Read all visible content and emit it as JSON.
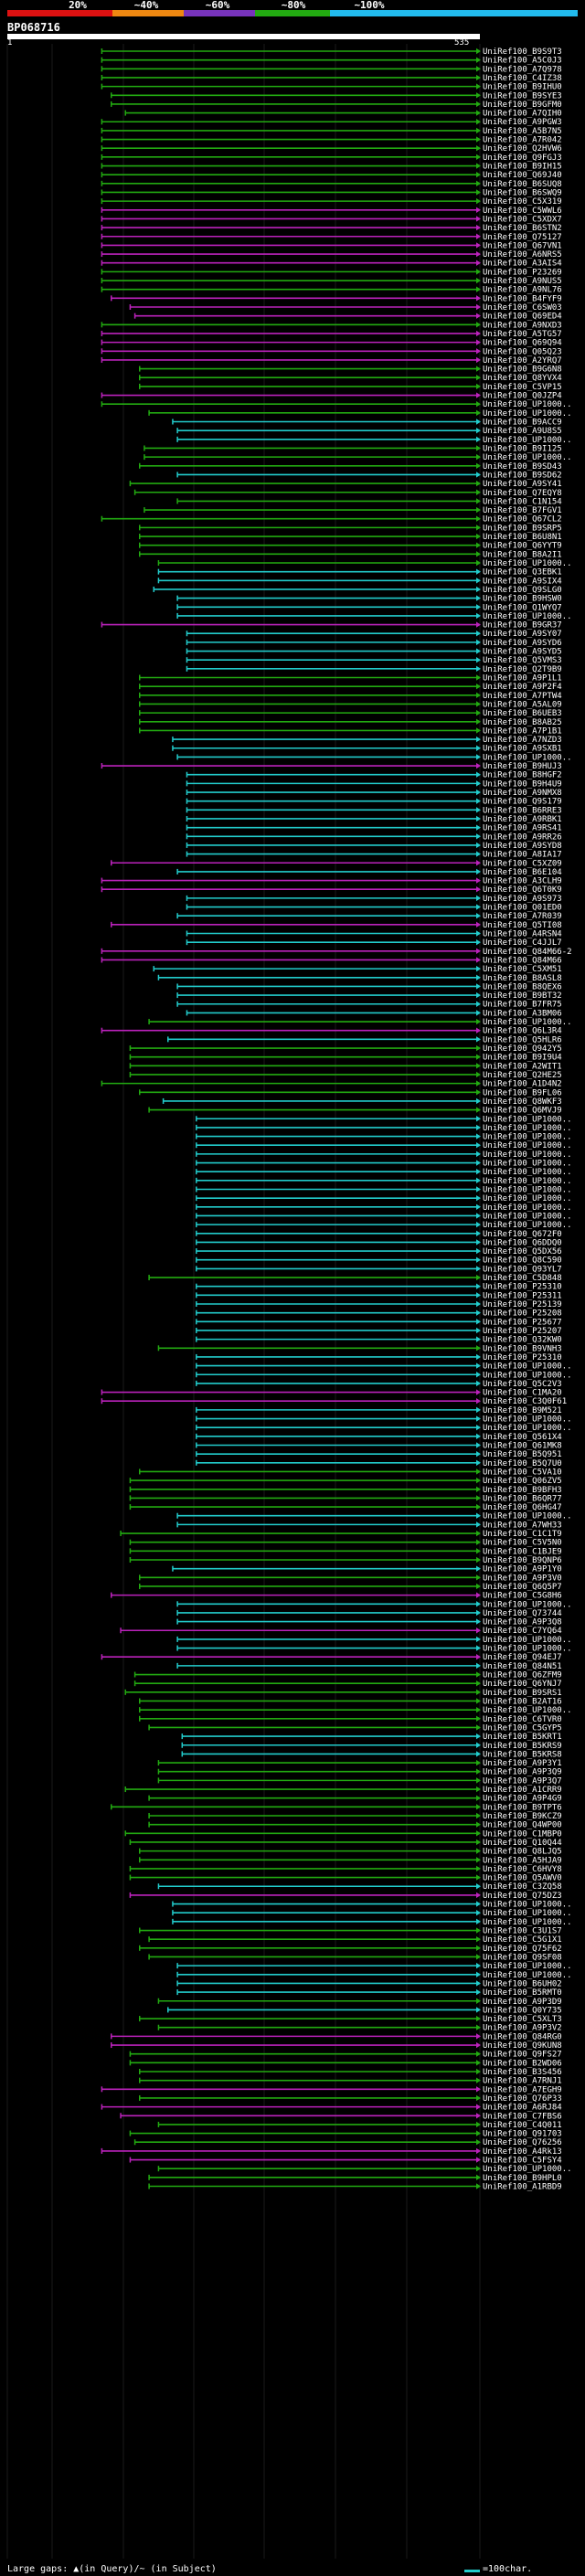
{
  "query": {
    "id": "BP068716",
    "range_start": "1",
    "range_end": "535"
  },
  "scale": {
    "labels": [
      "20%",
      "~40%",
      "~60%",
      "~80%",
      "~100%"
    ],
    "colors": [
      "#dd1111",
      "#ee8811",
      "#7733bb",
      "#22aa11",
      "#22bbee"
    ]
  },
  "hit_colors": {
    "cyan": "#22cccc",
    "green": "#22aa11",
    "magenta": "#bb22bb"
  },
  "hits": [
    [
      "UniRef100_B9S9T3",
      "g",
      0.2
    ],
    [
      "UniRef100_A5C0J3",
      "g",
      0.2
    ],
    [
      "UniRef100_A7Q978",
      "g",
      0.2
    ],
    [
      "UniRef100_C4IZ38",
      "g",
      0.2
    ],
    [
      "UniRef100_B9IHU0",
      "g",
      0.2
    ],
    [
      "UniRef100_B9SYE3",
      "g",
      0.22
    ],
    [
      "UniRef100_B9GFM0",
      "g",
      0.22
    ],
    [
      "UniRef100_A7QIH0",
      "g",
      0.25
    ],
    [
      "UniRef100_A9PGW3",
      "g",
      0.2
    ],
    [
      "UniRef100_A5B7N5",
      "g",
      0.2
    ],
    [
      "UniRef100_A7R042",
      "g",
      0.2
    ],
    [
      "UniRef100_Q2HVW6",
      "g",
      0.2
    ],
    [
      "UniRef100_Q9FGJ3",
      "g",
      0.2
    ],
    [
      "UniRef100_B9IH15",
      "g",
      0.2
    ],
    [
      "UniRef100_Q69J40",
      "g",
      0.2
    ],
    [
      "UniRef100_B6SUQ8",
      "g",
      0.2
    ],
    [
      "UniRef100_B6SWQ9",
      "g",
      0.2
    ],
    [
      "UniRef100_C5X319",
      "g",
      0.2
    ],
    [
      "UniRef100_C5WWL6",
      "m",
      0.2
    ],
    [
      "UniRef100_C5XDX7",
      "m",
      0.2
    ],
    [
      "UniRef100_B6STN2",
      "m",
      0.2
    ],
    [
      "UniRef100_Q75127",
      "m",
      0.2
    ],
    [
      "UniRef100_Q67VN1",
      "m",
      0.2
    ],
    [
      "UniRef100_A6NRS5",
      "m",
      0.2
    ],
    [
      "UniRef100_A3AIS4",
      "m",
      0.2
    ],
    [
      "UniRef100_P23269",
      "g",
      0.2
    ],
    [
      "UniRef100_A9NUS5",
      "g",
      0.2
    ],
    [
      "UniRef100_A9NL76",
      "g",
      0.2
    ],
    [
      "UniRef100_B4FYF9",
      "m",
      0.22
    ],
    [
      "UniRef100_C6SW03",
      "m",
      0.26
    ],
    [
      "UniRef100_Q69ED4",
      "m",
      0.27
    ],
    [
      "UniRef100_A9NXD3",
      "g",
      0.2
    ],
    [
      "UniRef100_A5TG57",
      "m",
      0.2
    ],
    [
      "UniRef100_Q69Q94",
      "m",
      0.2
    ],
    [
      "UniRef100_Q05Q23",
      "m",
      0.2
    ],
    [
      "UniRef100_A2YRQ7",
      "m",
      0.2
    ],
    [
      "UniRef100_B9G6N8",
      "g",
      0.28
    ],
    [
      "UniRef100_Q8YVX4",
      "g",
      0.28
    ],
    [
      "UniRef100_C5VP15",
      "g",
      0.28
    ],
    [
      "UniRef100_Q0JZP4",
      "m",
      0.2
    ],
    [
      "UniRef100_UP1000..",
      "g",
      0.2
    ],
    [
      "UniRef100_UP1000..",
      "g",
      0.3
    ],
    [
      "UniRef100_B9ACC9",
      "c",
      0.35
    ],
    [
      "UniRef100_A9U8S5",
      "c",
      0.36
    ],
    [
      "UniRef100_UP1000..",
      "c",
      0.36
    ],
    [
      "UniRef100_B9I125",
      "g",
      0.29
    ],
    [
      "UniRef100_UP1000..",
      "g",
      0.29
    ],
    [
      "UniRef100_B9SD43",
      "g",
      0.28
    ],
    [
      "UniRef100_B9SD62",
      "c",
      0.36
    ],
    [
      "UniRef100_A9SY41",
      "g",
      0.26
    ],
    [
      "UniRef100_Q7EQY8",
      "g",
      0.27
    ],
    [
      "UniRef100_C1N154",
      "g",
      0.36
    ],
    [
      "UniRef100_B7FGV1",
      "g",
      0.29
    ],
    [
      "UniRef100_Q67CL2",
      "g",
      0.2
    ],
    [
      "UniRef100_B9SRP5",
      "g",
      0.28
    ],
    [
      "UniRef100_B6U8N1",
      "g",
      0.28
    ],
    [
      "UniRef100_Q6YYT9",
      "g",
      0.28
    ],
    [
      "UniRef100_B8A2I1",
      "g",
      0.28
    ],
    [
      "UniRef100_UP1000..",
      "g",
      0.32
    ],
    [
      "UniRef100_Q3EBK1",
      "c",
      0.32
    ],
    [
      "UniRef100_A9SIX4",
      "c",
      0.32
    ],
    [
      "UniRef100_Q9SLG0",
      "c",
      0.31
    ],
    [
      "UniRef100_B9HSW0",
      "c",
      0.36
    ],
    [
      "UniRef100_Q1WYQ7",
      "c",
      0.36
    ],
    [
      "UniRef100_UP1000..",
      "c",
      0.36
    ],
    [
      "UniRef100_B9GR37",
      "m",
      0.2
    ],
    [
      "UniRef100_A9SY07",
      "c",
      0.38
    ],
    [
      "UniRef100_A9SYD6",
      "c",
      0.38
    ],
    [
      "UniRef100_A9SYD5",
      "c",
      0.38
    ],
    [
      "UniRef100_Q5VMS3",
      "c",
      0.38
    ],
    [
      "UniRef100_Q2T9B9",
      "c",
      0.38
    ],
    [
      "UniRef100_A9P1L1",
      "g",
      0.28
    ],
    [
      "UniRef100_A9P2F4",
      "g",
      0.28
    ],
    [
      "UniRef100_A7PTW4",
      "g",
      0.28
    ],
    [
      "UniRef100_A5AL09",
      "g",
      0.28
    ],
    [
      "UniRef100_B6UEB3",
      "g",
      0.28
    ],
    [
      "UniRef100_B8AB25",
      "g",
      0.28
    ],
    [
      "UniRef100_A7P1B1",
      "g",
      0.28
    ],
    [
      "UniRef100_A7NZD3",
      "c",
      0.35
    ],
    [
      "UniRef100_A9SXB1",
      "c",
      0.35
    ],
    [
      "UniRef100_UP1000..",
      "c",
      0.36
    ],
    [
      "UniRef100_B9HUJ3",
      "m",
      0.2
    ],
    [
      "UniRef100_B8HGF2",
      "c",
      0.38
    ],
    [
      "UniRef100_B9H4U9",
      "c",
      0.38
    ],
    [
      "UniRef100_A9NMX8",
      "c",
      0.38
    ],
    [
      "UniRef100_Q9S179",
      "c",
      0.38
    ],
    [
      "UniRef100_B6RRE3",
      "c",
      0.38
    ],
    [
      "UniRef100_A9RBK1",
      "c",
      0.38
    ],
    [
      "UniRef100_A9RS41",
      "c",
      0.38
    ],
    [
      "UniRef100_A9RR26",
      "c",
      0.38
    ],
    [
      "UniRef100_A9SYD8",
      "c",
      0.38
    ],
    [
      "UniRef100_A8IA17",
      "c",
      0.38
    ],
    [
      "UniRef100_C5XZ09",
      "m",
      0.22
    ],
    [
      "UniRef100_B6E104",
      "c",
      0.36
    ],
    [
      "UniRef100_A3CLH9",
      "m",
      0.2
    ],
    [
      "UniRef100_Q6T0K9",
      "m",
      0.2
    ],
    [
      "UniRef100_A9S973",
      "c",
      0.38
    ],
    [
      "UniRef100_Q01ED0",
      "c",
      0.38
    ],
    [
      "UniRef100_A7R039",
      "c",
      0.36
    ],
    [
      "UniRef100_Q5TI08",
      "m",
      0.22
    ],
    [
      "UniRef100_A4RSN4",
      "c",
      0.38
    ],
    [
      "UniRef100_C4JJL7",
      "c",
      0.38
    ],
    [
      "UniRef100_Q84M66-2",
      "m",
      0.2
    ],
    [
      "UniRef100_Q84M66",
      "m",
      0.2
    ],
    [
      "UniRef100_C5XM51",
      "c",
      0.31
    ],
    [
      "UniRef100_B8ASL8",
      "c",
      0.32
    ],
    [
      "UniRef100_B8QEX6",
      "c",
      0.36
    ],
    [
      "UniRef100_B9BT32",
      "c",
      0.36
    ],
    [
      "UniRef100_B7FR75",
      "c",
      0.36
    ],
    [
      "UniRef100_A3BM06",
      "c",
      0.38
    ],
    [
      "UniRef100_UP1000..",
      "g",
      0.3
    ],
    [
      "UniRef100_Q6L3R4",
      "m",
      0.2
    ],
    [
      "UniRef100_Q5HLR6",
      "c",
      0.34
    ],
    [
      "UniRef100_Q942Y5",
      "g",
      0.26
    ],
    [
      "UniRef100_B9I9U4",
      "g",
      0.26
    ],
    [
      "UniRef100_A2WIT1",
      "g",
      0.26
    ],
    [
      "UniRef100_Q2HE25",
      "g",
      0.26
    ],
    [
      "UniRef100_A1D4N2",
      "g",
      0.2
    ],
    [
      "UniRef100_B9FL06",
      "g",
      0.28
    ],
    [
      "UniRef100_Q8WKF3",
      "c",
      0.33
    ],
    [
      "UniRef100_Q6MVJ9",
      "g",
      0.3
    ],
    [
      "UniRef100_UP1000..",
      "c",
      0.4
    ],
    [
      "UniRef100_UP1000..",
      "c",
      0.4
    ],
    [
      "UniRef100_UP1000..",
      "c",
      0.4
    ],
    [
      "UniRef100_UP1000..",
      "c",
      0.4
    ],
    [
      "UniRef100_UP1000..",
      "c",
      0.4
    ],
    [
      "UniRef100_UP1000..",
      "c",
      0.4
    ],
    [
      "UniRef100_UP1000..",
      "c",
      0.4
    ],
    [
      "UniRef100_UP1000..",
      "c",
      0.4
    ],
    [
      "UniRef100_UP1000..",
      "c",
      0.4
    ],
    [
      "UniRef100_UP1000..",
      "c",
      0.4
    ],
    [
      "UniRef100_UP1000..",
      "c",
      0.4
    ],
    [
      "UniRef100_UP1000..",
      "c",
      0.4
    ],
    [
      "UniRef100_UP1000..",
      "c",
      0.4
    ],
    [
      "UniRef100_Q672F0",
      "c",
      0.4
    ],
    [
      "UniRef100_Q6DDQ0",
      "c",
      0.4
    ],
    [
      "UniRef100_Q5DX56",
      "c",
      0.4
    ],
    [
      "UniRef100_Q8C590",
      "c",
      0.4
    ],
    [
      "UniRef100_Q93YL7",
      "c",
      0.4
    ],
    [
      "UniRef100_C5D848",
      "g",
      0.3
    ],
    [
      "UniRef100_P25310",
      "c",
      0.4
    ],
    [
      "UniRef100_P25311",
      "c",
      0.4
    ],
    [
      "UniRef100_P25139",
      "c",
      0.4
    ],
    [
      "UniRef100_P25208",
      "c",
      0.4
    ],
    [
      "UniRef100_P25677",
      "c",
      0.4
    ],
    [
      "UniRef100_P25207",
      "c",
      0.4
    ],
    [
      "UniRef100_Q32KW0",
      "c",
      0.4
    ],
    [
      "UniRef100_B9VNH3",
      "g",
      0.32
    ],
    [
      "UniRef100_P25310",
      "c",
      0.4
    ],
    [
      "UniRef100_UP1000..",
      "c",
      0.4
    ],
    [
      "UniRef100_UP1000..",
      "c",
      0.4
    ],
    [
      "UniRef100_Q5C2V3",
      "c",
      0.4
    ],
    [
      "UniRef100_C1MA20",
      "m",
      0.2
    ],
    [
      "UniRef100_C3Q0F61",
      "m",
      0.2
    ],
    [
      "UniRef100_B9M521",
      "c",
      0.4
    ],
    [
      "UniRef100_UP1000..",
      "c",
      0.4
    ],
    [
      "UniRef100_UP1000..",
      "c",
      0.4
    ],
    [
      "UniRef100_Q561X4",
      "c",
      0.4
    ],
    [
      "UniRef100_Q61MK8",
      "c",
      0.4
    ],
    [
      "UniRef100_B5Q951",
      "c",
      0.4
    ],
    [
      "UniRef100_B5Q7U0",
      "c",
      0.4
    ],
    [
      "UniRef100_C5VA10",
      "g",
      0.28
    ],
    [
      "UniRef100_Q06ZV5",
      "g",
      0.26
    ],
    [
      "UniRef100_B9BFH3",
      "g",
      0.26
    ],
    [
      "UniRef100_B6QR77",
      "g",
      0.26
    ],
    [
      "UniRef100_Q6HG47",
      "g",
      0.26
    ],
    [
      "UniRef100_UP1000..",
      "c",
      0.36
    ],
    [
      "UniRef100_A7WH33",
      "c",
      0.36
    ],
    [
      "UniRef100_C1C1T9",
      "g",
      0.24
    ],
    [
      "UniRef100_C5V5N0",
      "g",
      0.26
    ],
    [
      "UniRef100_C1BJE9",
      "g",
      0.26
    ],
    [
      "UniRef100_B9QNP6",
      "g",
      0.26
    ],
    [
      "UniRef100_A9P1Y0",
      "c",
      0.35
    ],
    [
      "UniRef100_A9P3V0",
      "g",
      0.28
    ],
    [
      "UniRef100_Q6Q5P7",
      "g",
      0.28
    ],
    [
      "UniRef100_C5G8H6",
      "m",
      0.22
    ],
    [
      "UniRef100_UP1000..",
      "c",
      0.36
    ],
    [
      "UniRef100_Q73744",
      "c",
      0.36
    ],
    [
      "UniRef100_A9P3Q8",
      "c",
      0.36
    ],
    [
      "UniRef100_C7YQ64",
      "m",
      0.24
    ],
    [
      "UniRef100_UP1000..",
      "c",
      0.36
    ],
    [
      "UniRef100_UP1000..",
      "c",
      0.36
    ],
    [
      "UniRef100_Q94EJ7",
      "m",
      0.2
    ],
    [
      "UniRef100_Q84N51",
      "c",
      0.36
    ],
    [
      "UniRef100_Q6ZFM9",
      "g",
      0.27
    ],
    [
      "UniRef100_Q6YNJ7",
      "g",
      0.27
    ],
    [
      "UniRef100_B9SRS1",
      "g",
      0.25
    ],
    [
      "UniRef100_B2AT16",
      "g",
      0.28
    ],
    [
      "UniRef100_UP1000..",
      "g",
      0.28
    ],
    [
      "UniRef100_C6TVR0",
      "g",
      0.28
    ],
    [
      "UniRef100_C5GYP5",
      "g",
      0.3
    ],
    [
      "UniRef100_B5KRT1",
      "c",
      0.37
    ],
    [
      "UniRef100_B5KRS9",
      "c",
      0.37
    ],
    [
      "UniRef100_B5KRS8",
      "c",
      0.37
    ],
    [
      "UniRef100_A9P3Y1",
      "g",
      0.32
    ],
    [
      "UniRef100_A9P3Q9",
      "g",
      0.32
    ],
    [
      "UniRef100_A9P3Q7",
      "g",
      0.32
    ],
    [
      "UniRef100_A1CRR9",
      "g",
      0.25
    ],
    [
      "UniRef100_A9P4G9",
      "g",
      0.3
    ],
    [
      "UniRef100_B9TPT6",
      "g",
      0.22
    ],
    [
      "UniRef100_B9KCZ9",
      "g",
      0.3
    ],
    [
      "UniRef100_Q4WP00",
      "g",
      0.3
    ],
    [
      "UniRef100_C1MBP0",
      "g",
      0.25
    ],
    [
      "UniRef100_Q10Q44",
      "g",
      0.26
    ],
    [
      "UniRef100_Q8LJQ5",
      "g",
      0.28
    ],
    [
      "UniRef100_A5HJA9",
      "g",
      0.28
    ],
    [
      "UniRef100_C6HVY8",
      "g",
      0.26
    ],
    [
      "UniRef100_Q5AWV0",
      "g",
      0.26
    ],
    [
      "UniRef100_C3ZQ58",
      "c",
      0.32
    ],
    [
      "UniRef100_Q75DZ3",
      "m",
      0.26
    ],
    [
      "UniRef100_UP1000..",
      "c",
      0.35
    ],
    [
      "UniRef100_UP1000..",
      "c",
      0.35
    ],
    [
      "UniRef100_UP1000..",
      "c",
      0.35
    ],
    [
      "UniRef100_C3U1S7",
      "g",
      0.28
    ],
    [
      "UniRef100_C5G1X1",
      "g",
      0.3
    ],
    [
      "UniRef100_Q75F62",
      "g",
      0.28
    ],
    [
      "UniRef100_Q9SF08",
      "g",
      0.3
    ],
    [
      "UniRef100_UP1000..",
      "c",
      0.36
    ],
    [
      "UniRef100_UP1000..",
      "c",
      0.36
    ],
    [
      "UniRef100_B6UH02",
      "c",
      0.36
    ],
    [
      "UniRef100_B5RMT0",
      "c",
      0.36
    ],
    [
      "UniRef100_A9P3D9",
      "g",
      0.32
    ],
    [
      "UniRef100_Q0Y735",
      "c",
      0.34
    ],
    [
      "UniRef100_C5XLT3",
      "g",
      0.28
    ],
    [
      "UniRef100_A9P3V2",
      "g",
      0.32
    ],
    [
      "UniRef100_Q84RG0",
      "m",
      0.22
    ],
    [
      "UniRef100_Q9KUN8",
      "m",
      0.22
    ],
    [
      "UniRef100_Q9FS27",
      "g",
      0.26
    ],
    [
      "UniRef100_B2WD06",
      "g",
      0.26
    ],
    [
      "UniRef100_B3S456",
      "g",
      0.28
    ],
    [
      "UniRef100_A7RNJ1",
      "g",
      0.28
    ],
    [
      "UniRef100_A7EGH9",
      "m",
      0.2
    ],
    [
      "UniRef100_Q76P33",
      "g",
      0.28
    ],
    [
      "UniRef100_A6RJ84",
      "m",
      0.2
    ],
    [
      "UniRef100_C7FBS6",
      "m",
      0.24
    ],
    [
      "UniRef100_C4Q011",
      "g",
      0.32
    ],
    [
      "UniRef100_Q91703",
      "g",
      0.26
    ],
    [
      "UniRef100_Q76256",
      "g",
      0.27
    ],
    [
      "UniRef100_A4Rk13",
      "m",
      0.2
    ],
    [
      "UniRef100_C5FSY4",
      "m",
      0.26
    ],
    [
      "UniRef100_UP1000..",
      "g",
      0.32
    ],
    [
      "UniRef100_B9HPL0",
      "g",
      0.3
    ],
    [
      "UniRef100_A1RBD9",
      "g",
      0.3
    ]
  ],
  "footer": {
    "gaps_text": "Large gaps: ▲(in Query)/~ (in Subject)",
    "scale_text": "=100char."
  }
}
